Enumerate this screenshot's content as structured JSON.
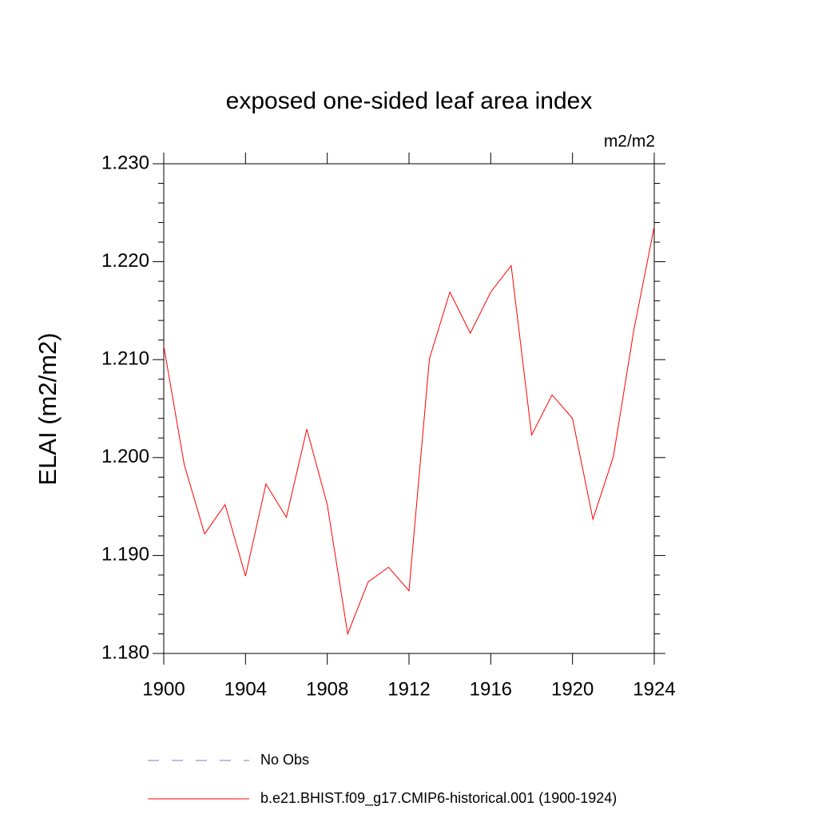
{
  "chart_data": {
    "type": "line",
    "title": "exposed one-sided leaf area index",
    "units": "m2/m2",
    "y_label": "ELAI  (m2/m2)",
    "x": [
      1900,
      1901,
      1902,
      1903,
      1904,
      1905,
      1906,
      1907,
      1908,
      1909,
      1910,
      1911,
      1912,
      1913,
      1914,
      1915,
      1916,
      1917,
      1918,
      1919,
      1920,
      1921,
      1922,
      1923,
      1924
    ],
    "series": [
      {
        "name": "No Obs",
        "color": "#7b7bc8",
        "dashed": true,
        "values": [
          null,
          null,
          null,
          null,
          null,
          null,
          null,
          null,
          null,
          null,
          null,
          null,
          null,
          null,
          null,
          null,
          null,
          null,
          null,
          null,
          null,
          null,
          null,
          null,
          null
        ]
      },
      {
        "name": "b.e21.BHIST.f09_g17.CMIP6-historical.001 (1900-1924)",
        "color": "#ff0000",
        "dashed": false,
        "values": [
          1.2114,
          1.1993,
          1.1922,
          1.1952,
          1.1879,
          1.1973,
          1.1939,
          1.2029,
          1.1952,
          1.182,
          1.1873,
          1.1888,
          1.1864,
          1.2101,
          1.2169,
          1.2127,
          1.2169,
          1.2196,
          1.2023,
          1.2064,
          1.204,
          1.1937,
          1.2001,
          1.213,
          1.2236
        ]
      }
    ],
    "xlim": [
      1900,
      1924
    ],
    "xticks": [
      1900,
      1904,
      1908,
      1912,
      1916,
      1920,
      1924
    ],
    "ylim": [
      1.18,
      1.23
    ],
    "yticks": [
      {
        "value": 1.18,
        "label": "1.180"
      },
      {
        "value": 1.19,
        "label": "1.190"
      },
      {
        "value": 1.2,
        "label": "1.200"
      },
      {
        "value": 1.21,
        "label": "1.210"
      },
      {
        "value": 1.22,
        "label": "1.220"
      },
      {
        "value": 1.23,
        "label": "1.230"
      }
    ],
    "yminorticks": [
      1.182,
      1.184,
      1.186,
      1.188,
      1.192,
      1.194,
      1.196,
      1.198,
      1.202,
      1.204,
      1.206,
      1.208,
      1.212,
      1.214,
      1.216,
      1.218,
      1.222,
      1.224,
      1.226,
      1.228
    ]
  }
}
